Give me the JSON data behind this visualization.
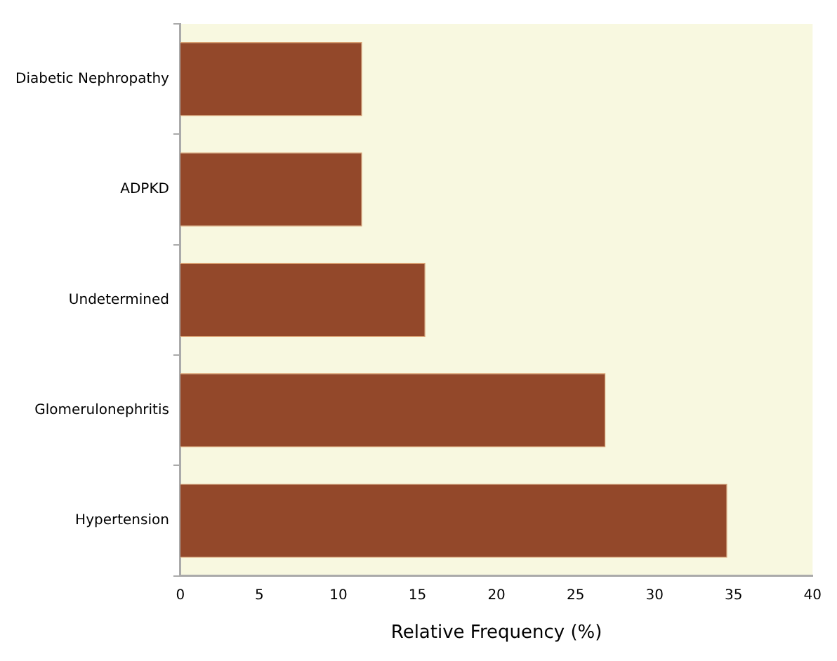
{
  "chart_data": {
    "type": "bar",
    "orientation": "horizontal",
    "xlabel": "Relative Frequency (%)",
    "categories": [
      "Diabetic Nephropathy",
      "ADPKD",
      "Undetermined",
      "Glomerulonephritis",
      "Hypertension"
    ],
    "values": [
      11.5,
      11.5,
      15.5,
      26.9,
      34.6
    ],
    "color": "#93482a",
    "xlim": [
      0,
      40
    ],
    "xticks": [
      0,
      5,
      10,
      15,
      20,
      25,
      30,
      35,
      40
    ],
    "grid": false,
    "legend": false
  }
}
